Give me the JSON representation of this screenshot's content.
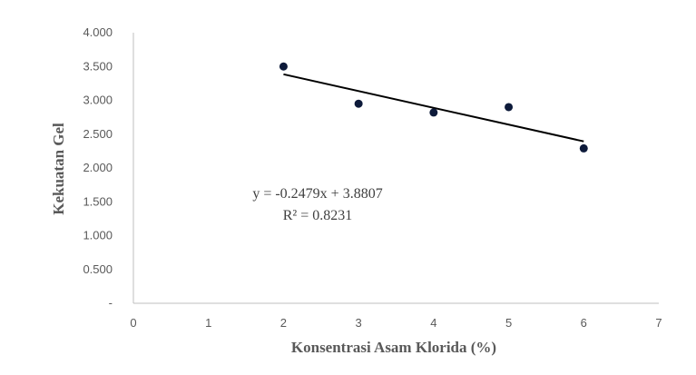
{
  "chart_data": {
    "type": "scatter",
    "title": "",
    "xlabel": "Konsentrasi Asam Klorida (%)",
    "ylabel": "Kekuatan Gel",
    "xlim": [
      0,
      7
    ],
    "ylim": [
      0,
      4
    ],
    "x_ticks": [
      0,
      1,
      2,
      3,
      4,
      5,
      6,
      7
    ],
    "x_tick_labels": [
      "0",
      "1",
      "2",
      "3",
      "4",
      "5",
      "6",
      "7"
    ],
    "y_ticks": [
      0,
      0.5,
      1,
      1.5,
      2,
      2.5,
      3,
      3.5,
      4
    ],
    "y_tick_labels": [
      "-",
      "0.500",
      "1.000",
      "1.500",
      "2.000",
      "2.500",
      "3.000",
      "3.500",
      "4.000"
    ],
    "grid": false,
    "legend": "none",
    "series": [
      {
        "x": [
          2,
          3,
          4,
          5,
          6
        ],
        "y": [
          3.5,
          2.95,
          2.82,
          2.9,
          2.29
        ],
        "color": "#0d1a3a"
      }
    ],
    "trendline": {
      "type": "linear",
      "slope": -0.2479,
      "intercept": 3.8807,
      "x_range": [
        2,
        6
      ],
      "color": "#000000",
      "equation_label": "y = -0.2479x + 3.8807",
      "r2_label": "R² = 0.8231"
    },
    "axis_color": "#bfbfbf"
  }
}
